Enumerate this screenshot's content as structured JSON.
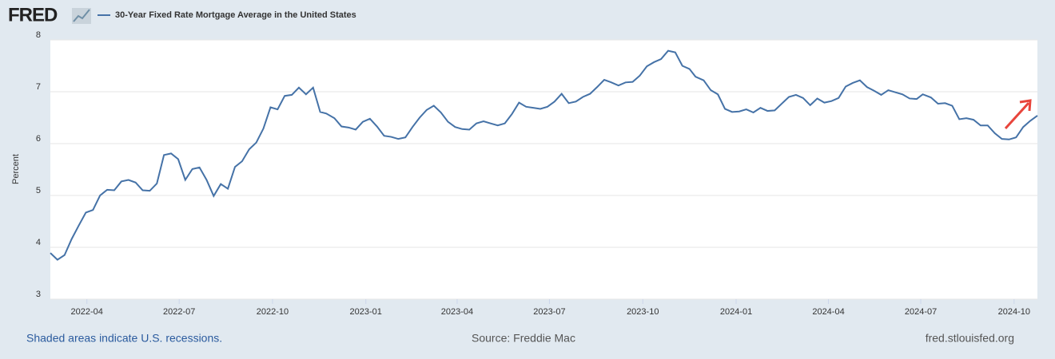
{
  "logo": "FRED",
  "chart_data": {
    "type": "line",
    "ylabel": "Percent",
    "x": [
      "2022-02-24",
      "2022-03-03",
      "2022-03-10",
      "2022-03-17",
      "2022-03-24",
      "2022-03-31",
      "2022-04-07",
      "2022-04-14",
      "2022-04-21",
      "2022-04-28",
      "2022-05-05",
      "2022-05-12",
      "2022-05-19",
      "2022-05-26",
      "2022-06-02",
      "2022-06-09",
      "2022-06-16",
      "2022-06-23",
      "2022-06-30",
      "2022-07-07",
      "2022-07-14",
      "2022-07-21",
      "2022-07-28",
      "2022-08-04",
      "2022-08-11",
      "2022-08-18",
      "2022-08-25",
      "2022-09-01",
      "2022-09-08",
      "2022-09-15",
      "2022-09-22",
      "2022-09-29",
      "2022-10-06",
      "2022-10-13",
      "2022-10-20",
      "2022-10-27",
      "2022-11-03",
      "2022-11-10",
      "2022-11-17",
      "2022-11-23",
      "2022-12-01",
      "2022-12-08",
      "2022-12-15",
      "2022-12-22",
      "2022-12-29",
      "2023-01-05",
      "2023-01-12",
      "2023-01-19",
      "2023-01-26",
      "2023-02-02",
      "2023-02-09",
      "2023-02-16",
      "2023-02-23",
      "2023-03-02",
      "2023-03-09",
      "2023-03-16",
      "2023-03-23",
      "2023-03-30",
      "2023-04-06",
      "2023-04-13",
      "2023-04-20",
      "2023-04-27",
      "2023-05-04",
      "2023-05-11",
      "2023-05-18",
      "2023-05-25",
      "2023-06-01",
      "2023-06-08",
      "2023-06-15",
      "2023-06-22",
      "2023-06-29",
      "2023-07-06",
      "2023-07-13",
      "2023-07-20",
      "2023-07-27",
      "2023-08-03",
      "2023-08-10",
      "2023-08-17",
      "2023-08-24",
      "2023-08-31",
      "2023-09-07",
      "2023-09-14",
      "2023-09-21",
      "2023-09-28",
      "2023-10-05",
      "2023-10-12",
      "2023-10-19",
      "2023-10-26",
      "2023-11-02",
      "2023-11-09",
      "2023-11-16",
      "2023-11-22",
      "2023-11-30",
      "2023-12-07",
      "2023-12-14",
      "2023-12-21",
      "2023-12-28",
      "2024-01-04",
      "2024-01-11",
      "2024-01-18",
      "2024-01-25",
      "2024-02-01",
      "2024-02-08",
      "2024-02-15",
      "2024-02-22",
      "2024-02-29",
      "2024-03-07",
      "2024-03-14",
      "2024-03-21",
      "2024-03-28",
      "2024-04-04",
      "2024-04-11",
      "2024-04-18",
      "2024-04-25",
      "2024-05-02",
      "2024-05-09",
      "2024-05-16",
      "2024-05-23",
      "2024-05-30",
      "2024-06-06",
      "2024-06-13",
      "2024-06-20",
      "2024-06-27",
      "2024-07-03",
      "2024-07-11",
      "2024-07-18",
      "2024-07-25",
      "2024-08-01",
      "2024-08-08",
      "2024-08-15",
      "2024-08-22",
      "2024-08-29",
      "2024-09-05",
      "2024-09-12",
      "2024-09-19",
      "2024-09-26",
      "2024-10-03",
      "2024-10-10",
      "2024-10-17",
      "2024-10-24"
    ],
    "series": [
      {
        "name": "30-Year Fixed Rate Mortgage Average in the United States",
        "color": "#4572a7",
        "values": [
          3.89,
          3.76,
          3.85,
          4.16,
          4.42,
          4.67,
          4.72,
          5.0,
          5.11,
          5.1,
          5.27,
          5.3,
          5.25,
          5.1,
          5.09,
          5.23,
          5.78,
          5.81,
          5.7,
          5.3,
          5.51,
          5.54,
          5.3,
          4.99,
          5.22,
          5.13,
          5.55,
          5.66,
          5.89,
          6.02,
          6.29,
          6.7,
          6.66,
          6.92,
          6.94,
          7.08,
          6.95,
          7.08,
          6.61,
          6.58,
          6.49,
          6.33,
          6.31,
          6.27,
          6.42,
          6.48,
          6.33,
          6.15,
          6.13,
          6.09,
          6.12,
          6.32,
          6.5,
          6.65,
          6.73,
          6.6,
          6.42,
          6.32,
          6.28,
          6.27,
          6.39,
          6.43,
          6.39,
          6.35,
          6.39,
          6.57,
          6.79,
          6.71,
          6.69,
          6.67,
          6.71,
          6.81,
          6.96,
          6.78,
          6.81,
          6.9,
          6.96,
          7.09,
          7.23,
          7.18,
          7.12,
          7.18,
          7.19,
          7.31,
          7.49,
          7.57,
          7.63,
          7.79,
          7.76,
          7.5,
          7.44,
          7.29,
          7.22,
          7.03,
          6.95,
          6.67,
          6.61,
          6.62,
          6.66,
          6.6,
          6.69,
          6.63,
          6.64,
          6.77,
          6.9,
          6.94,
          6.88,
          6.74,
          6.87,
          6.79,
          6.82,
          6.88,
          7.1,
          7.17,
          7.22,
          7.09,
          7.02,
          6.94,
          7.03,
          6.99,
          6.95,
          6.87,
          6.86,
          6.95,
          6.89,
          6.77,
          6.78,
          6.73,
          6.47,
          6.49,
          6.46,
          6.35,
          6.35,
          6.2,
          6.09,
          6.08,
          6.12,
          6.32,
          6.44,
          6.54
        ]
      }
    ],
    "xlim": [
      "2022-02-24",
      "2024-10-24"
    ],
    "xticks": [
      {
        "value": "2022-04-01",
        "label": "2022-04"
      },
      {
        "value": "2022-07-01",
        "label": "2022-07"
      },
      {
        "value": "2022-10-01",
        "label": "2022-10"
      },
      {
        "value": "2023-01-01",
        "label": "2023-01"
      },
      {
        "value": "2023-04-01",
        "label": "2023-04"
      },
      {
        "value": "2023-07-01",
        "label": "2023-07"
      },
      {
        "value": "2023-10-01",
        "label": "2023-10"
      },
      {
        "value": "2024-01-01",
        "label": "2024-01"
      },
      {
        "value": "2024-04-01",
        "label": "2024-04"
      },
      {
        "value": "2024-07-01",
        "label": "2024-07"
      },
      {
        "value": "2024-10-01",
        "label": "2024-10"
      }
    ],
    "ylim": [
      3,
      8
    ],
    "yticks": [
      3,
      4,
      5,
      6,
      7,
      8
    ],
    "grid": true
  },
  "footer": {
    "note": "Shaded areas indicate U.S. recessions.",
    "source": "Source: Freddie Mac",
    "site": "fred.stlouisfed.org"
  }
}
